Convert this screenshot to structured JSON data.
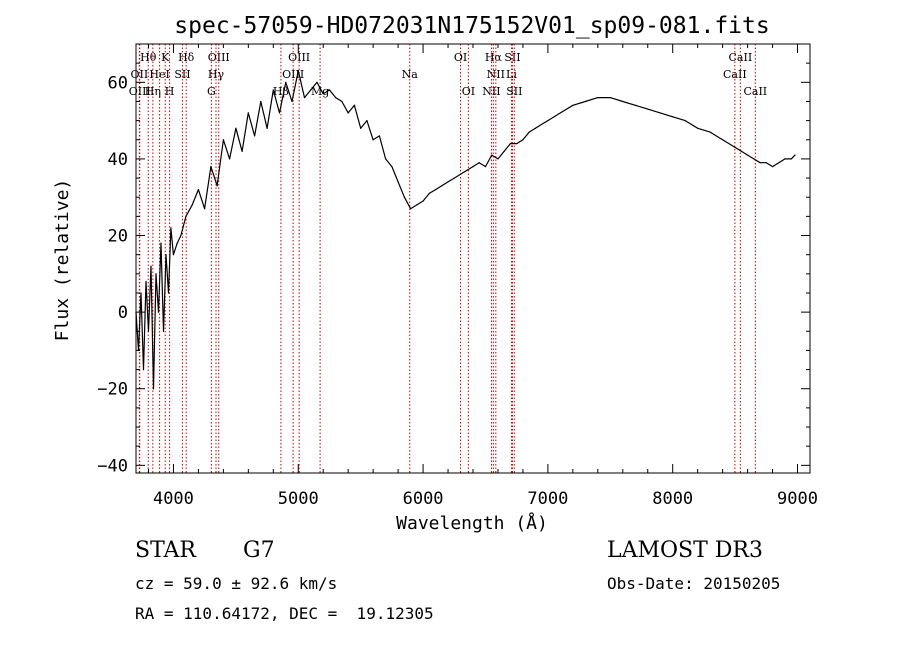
{
  "chart_data": {
    "type": "line",
    "title": "spec-57059-HD072031N175152V01_sp09-081.fits",
    "xlabel": "Wavelength (Å)",
    "ylabel": "Flux (relative)",
    "xlim": [
      3700,
      9100
    ],
    "ylim": [
      -42,
      70
    ],
    "xticks": [
      4000,
      5000,
      6000,
      7000,
      8000,
      9000
    ],
    "yticks": [
      -40,
      -20,
      0,
      20,
      40,
      60
    ],
    "series": [
      {
        "name": "spectrum",
        "color": "#000000",
        "x": [
          3700,
          3720,
          3740,
          3760,
          3780,
          3800,
          3820,
          3840,
          3860,
          3880,
          3900,
          3920,
          3940,
          3960,
          3980,
          4000,
          4030,
          4060,
          4100,
          4150,
          4200,
          4250,
          4300,
          4350,
          4400,
          4450,
          4500,
          4550,
          4600,
          4650,
          4700,
          4750,
          4800,
          4850,
          4900,
          4950,
          5000,
          5050,
          5100,
          5150,
          5200,
          5250,
          5300,
          5350,
          5400,
          5450,
          5500,
          5550,
          5600,
          5650,
          5700,
          5750,
          5800,
          5850,
          5900,
          5950,
          6000,
          6050,
          6100,
          6150,
          6200,
          6250,
          6300,
          6350,
          6400,
          6450,
          6500,
          6550,
          6600,
          6650,
          6700,
          6750,
          6800,
          6850,
          6900,
          6950,
          7000,
          7100,
          7200,
          7300,
          7400,
          7500,
          7600,
          7700,
          7800,
          7900,
          8000,
          8100,
          8200,
          8300,
          8400,
          8500,
          8550,
          8600,
          8650,
          8700,
          8750,
          8800,
          8850,
          8900,
          8950,
          8980
        ],
        "y": [
          0,
          -10,
          5,
          -15,
          8,
          -5,
          12,
          -20,
          10,
          0,
          18,
          -5,
          15,
          5,
          22,
          15,
          18,
          20,
          25,
          28,
          32,
          27,
          38,
          33,
          45,
          40,
          48,
          42,
          52,
          46,
          55,
          48,
          58,
          52,
          60,
          55,
          63,
          56,
          58,
          60,
          57,
          58,
          56,
          55,
          52,
          54,
          48,
          50,
          45,
          46,
          40,
          38,
          34,
          30,
          27,
          28,
          29,
          31,
          32,
          33,
          34,
          35,
          36,
          37,
          38,
          39,
          38,
          41,
          40,
          42,
          44,
          44,
          45,
          47,
          48,
          49,
          50,
          52,
          54,
          55,
          56,
          56,
          55,
          54,
          53,
          52,
          51,
          50,
          48,
          47,
          45,
          43,
          42,
          41,
          40,
          39,
          39,
          38,
          39,
          40,
          40,
          41
        ]
      }
    ],
    "spectral_lines": [
      {
        "label": "Hθ",
        "x": 3798,
        "row": 1
      },
      {
        "label": "OII",
        "x": 3727,
        "row": 2
      },
      {
        "label": "OIII",
        "x": 3730,
        "row": 3
      },
      {
        "label": "K",
        "x": 3934,
        "row": 1
      },
      {
        "label": "HeI",
        "x": 3889,
        "row": 2
      },
      {
        "label": "Hη",
        "x": 3835,
        "row": 3
      },
      {
        "label": "Hδ",
        "x": 4102,
        "row": 1
      },
      {
        "label": "SII",
        "x": 4072,
        "row": 2
      },
      {
        "label": "H",
        "x": 3969,
        "row": 3
      },
      {
        "label": "OIII",
        "x": 4363,
        "row": 1
      },
      {
        "label": "Hγ",
        "x": 4341,
        "row": 2
      },
      {
        "label": "G",
        "x": 4304,
        "row": 3
      },
      {
        "label": "OIII",
        "x": 5007,
        "row": 1
      },
      {
        "label": "OIII",
        "x": 4959,
        "row": 2
      },
      {
        "label": "Hβ",
        "x": 4861,
        "row": 3
      },
      {
        "label": "Mg",
        "x": 5175,
        "row": 3
      },
      {
        "label": "Na",
        "x": 5893,
        "row": 2
      },
      {
        "label": "OI",
        "x": 6300,
        "row": 1
      },
      {
        "label": "OI",
        "x": 6363,
        "row": 3
      },
      {
        "label": "Hα",
        "x": 6563,
        "row": 1
      },
      {
        "label": "NII",
        "x": 6583,
        "row": 2
      },
      {
        "label": "NII",
        "x": 6548,
        "row": 3
      },
      {
        "label": "SII",
        "x": 6716,
        "row": 1
      },
      {
        "label": "Li",
        "x": 6708,
        "row": 2
      },
      {
        "label": "SII",
        "x": 6731,
        "row": 3
      },
      {
        "label": "CaII",
        "x": 8542,
        "row": 1
      },
      {
        "label": "CaII",
        "x": 8498,
        "row": 2
      },
      {
        "label": "CaII",
        "x": 8662,
        "row": 3
      }
    ]
  },
  "info": {
    "object_class": "STAR",
    "subclass": "G7",
    "survey": "LAMOST DR3",
    "redshift": "cz = 59.0 ± 92.6 km/s",
    "obs_date": "Obs-Date: 20150205",
    "coords": "RA = 110.64172, DEC =  19.12305"
  },
  "colors": {
    "line_marker": "#cc0000",
    "spectrum": "#000000",
    "axes": "#000000"
  }
}
